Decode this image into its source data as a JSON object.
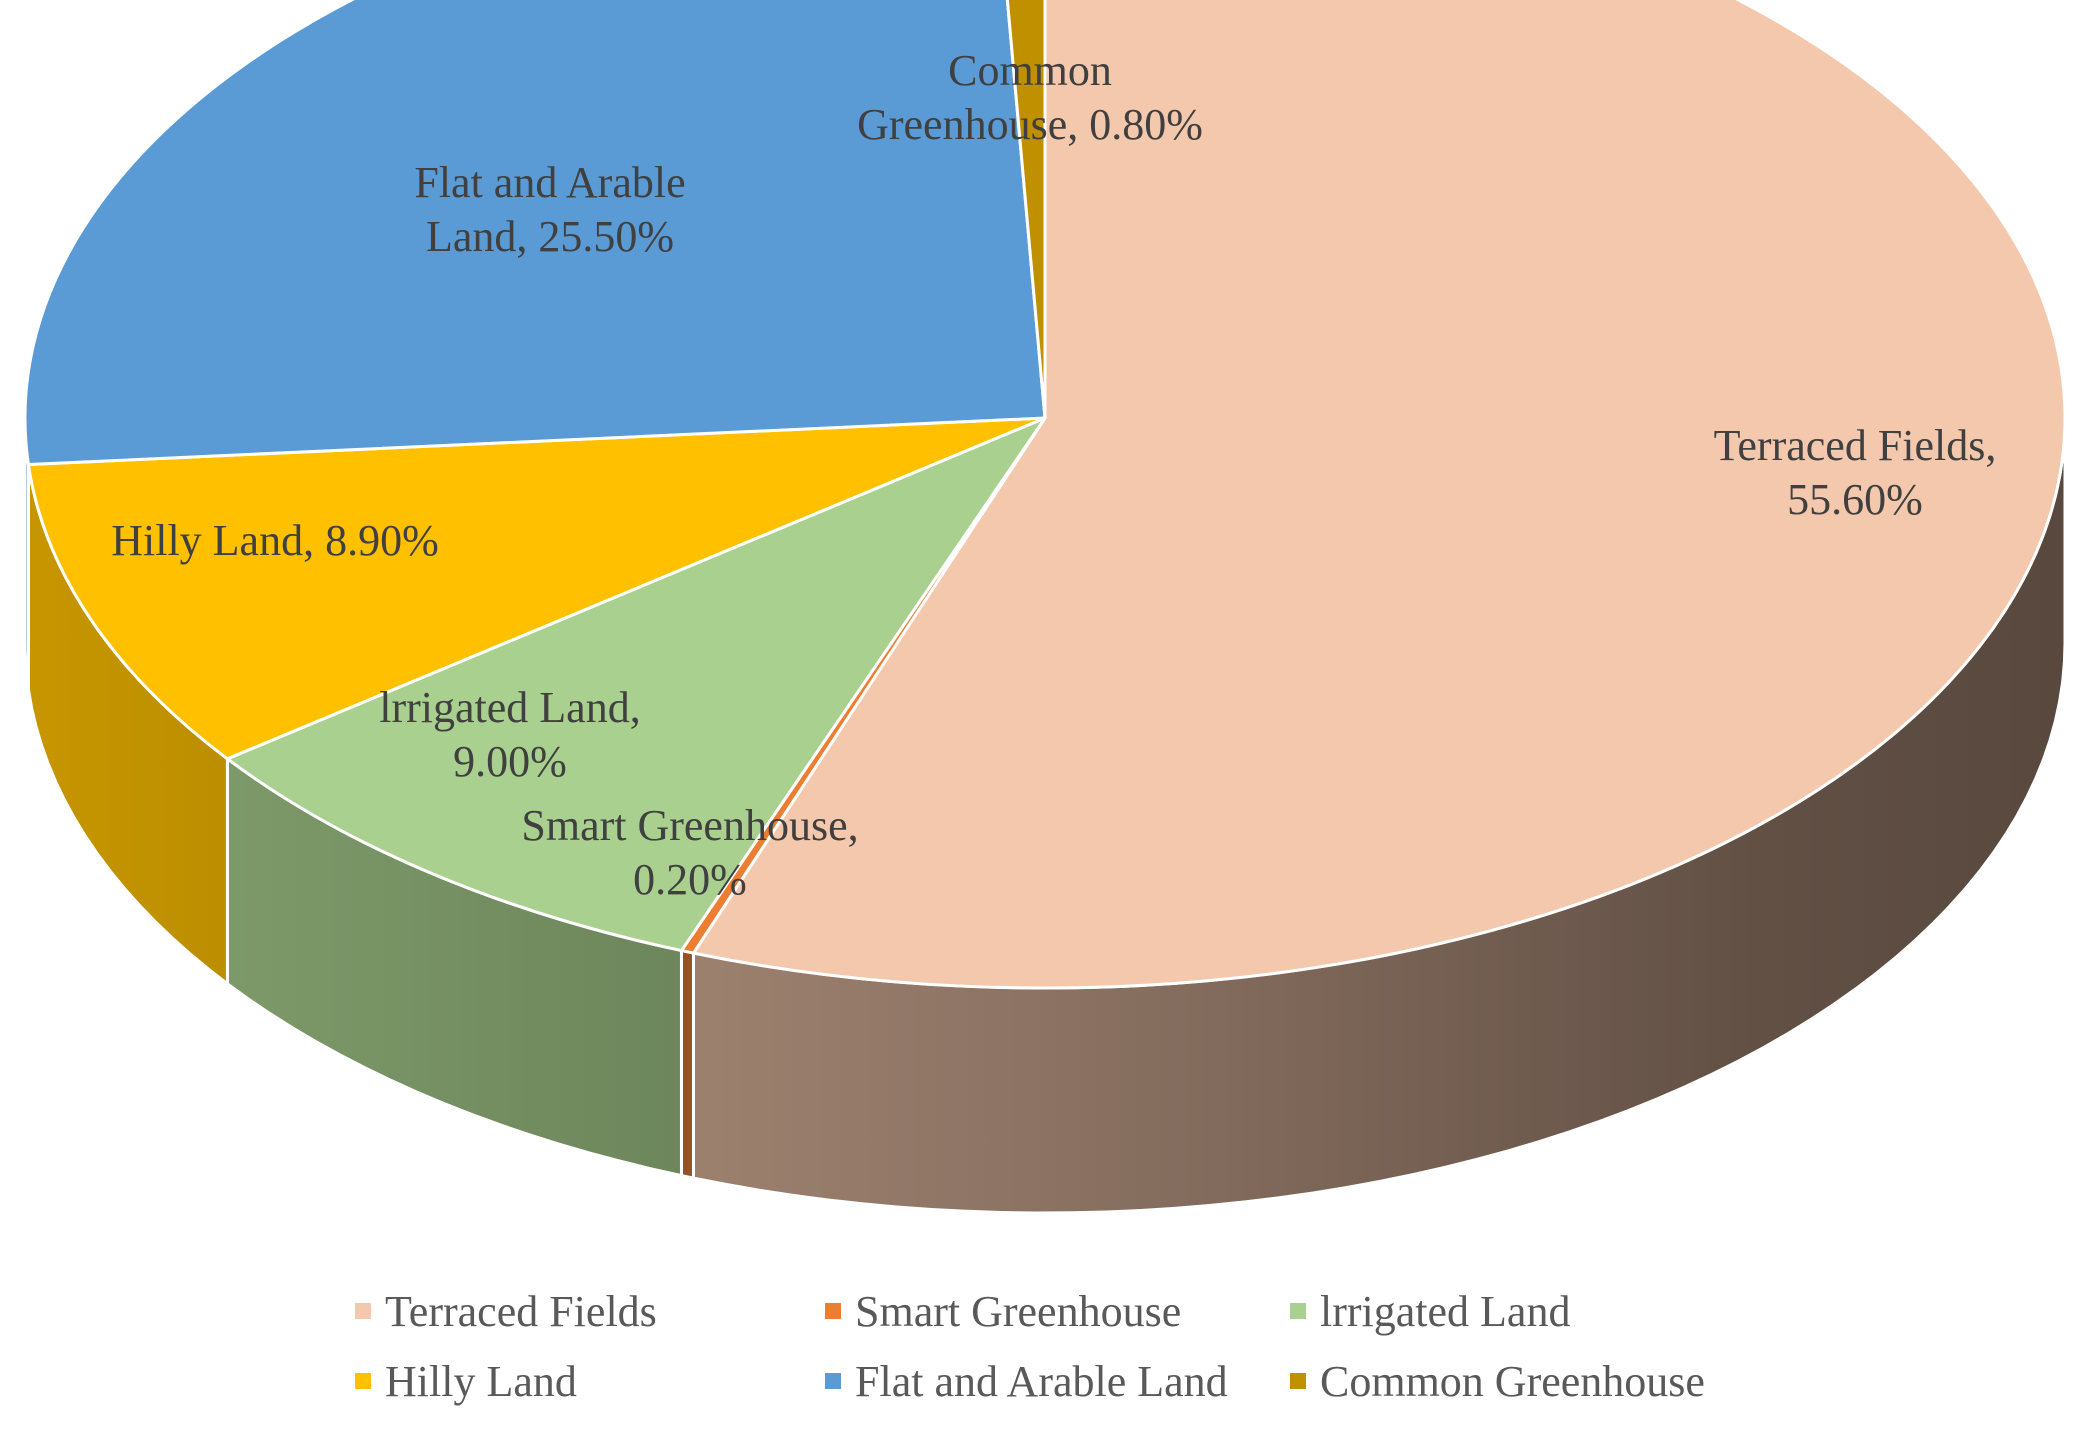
{
  "chart_data": {
    "type": "pie",
    "style": "3d",
    "title": "",
    "slices": [
      {
        "name": "Terraced Fields",
        "value": 55.6,
        "line1": "Terraced Fields,",
        "line2": "55.60%",
        "color": "#F4C8AC"
      },
      {
        "name": "Smart Greenhouse",
        "value": 0.2,
        "line1": "Smart Greenhouse,",
        "line2": "0.20%",
        "color": "#ED7D31"
      },
      {
        "name": "lrrigated Land",
        "value": 9.0,
        "line1": "lrrigated Land,",
        "line2": "9.00%",
        "color": "#A9D08E"
      },
      {
        "name": "Hilly Land",
        "value": 8.9,
        "line1": "Hilly Land, 8.90%",
        "line2": "",
        "color": "#FFC000"
      },
      {
        "name": "Flat and Arable Land",
        "value": 25.5,
        "line1": "Flat and Arable",
        "line2": "Land, 25.50%",
        "color": "#5B9BD5"
      },
      {
        "name": "Common Greenhouse",
        "value": 0.8,
        "line1": "Common",
        "line2": "Greenhouse, 0.80%",
        "color": "#C09000"
      }
    ],
    "legend": {
      "position": "bottom",
      "items": [
        "Terraced Fields",
        "Smart Greenhouse",
        "lrrigated Land",
        "Hilly Land",
        "Flat and Arable Land",
        "Common Greenhouse"
      ]
    }
  }
}
